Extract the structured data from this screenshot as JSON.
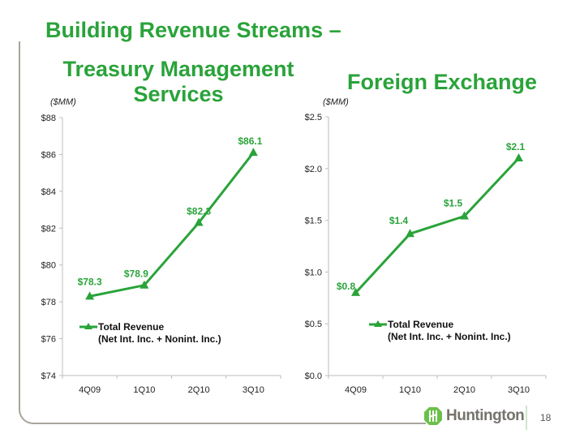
{
  "slide": {
    "title": "Building Revenue Streams –",
    "page_number": "18",
    "brand": "Huntington",
    "accent_color": "#2aa33a"
  },
  "chart_data": [
    {
      "type": "line",
      "title": "Treasury Management Services",
      "ylabel": "($MM)",
      "xlabel": "",
      "categories": [
        "4Q09",
        "1Q10",
        "2Q10",
        "3Q10"
      ],
      "series": [
        {
          "name": "Total Revenue (Net Int. Inc. + Nonint. Inc.)",
          "legend_line1": "Total Revenue",
          "legend_line2": "(Net Int. Inc. + Nonint. Inc.)",
          "values": [
            78.3,
            78.9,
            82.3,
            86.1
          ],
          "labels": [
            "$78.3",
            "$78.9",
            "$82.3",
            "$86.1"
          ],
          "color": "#2aa33a",
          "marker": "triangle"
        }
      ],
      "ylim": [
        74,
        88
      ],
      "yticks": [
        74,
        76,
        78,
        80,
        82,
        84,
        86,
        88
      ],
      "ytick_labels": [
        "$74",
        "$76",
        "$78",
        "$80",
        "$82",
        "$84",
        "$86",
        "$88"
      ],
      "grid": false,
      "legend_position": "lower-left"
    },
    {
      "type": "line",
      "title": "Foreign Exchange",
      "ylabel": "($MM)",
      "xlabel": "",
      "categories": [
        "4Q09",
        "1Q10",
        "2Q10",
        "3Q10"
      ],
      "series": [
        {
          "name": "Total Revenue (Net Int. Inc. + Nonint. Inc.)",
          "legend_line1": "Total Revenue",
          "legend_line2": "(Net Int. Inc. + Nonint. Inc.)",
          "values": [
            0.8,
            1.37,
            1.54,
            2.1
          ],
          "labels": [
            "$0.8",
            "$1.4",
            "$1.5",
            "$2.1"
          ],
          "color": "#2aa33a",
          "marker": "triangle"
        }
      ],
      "ylim": [
        0,
        2.5
      ],
      "yticks": [
        0,
        0.5,
        1.0,
        1.5,
        2.0,
        2.5
      ],
      "ytick_labels": [
        "$0.0",
        "$0.5",
        "$1.0",
        "$1.5",
        "$2.0",
        "$2.5"
      ],
      "grid": false,
      "legend_position": "lower-left"
    }
  ]
}
